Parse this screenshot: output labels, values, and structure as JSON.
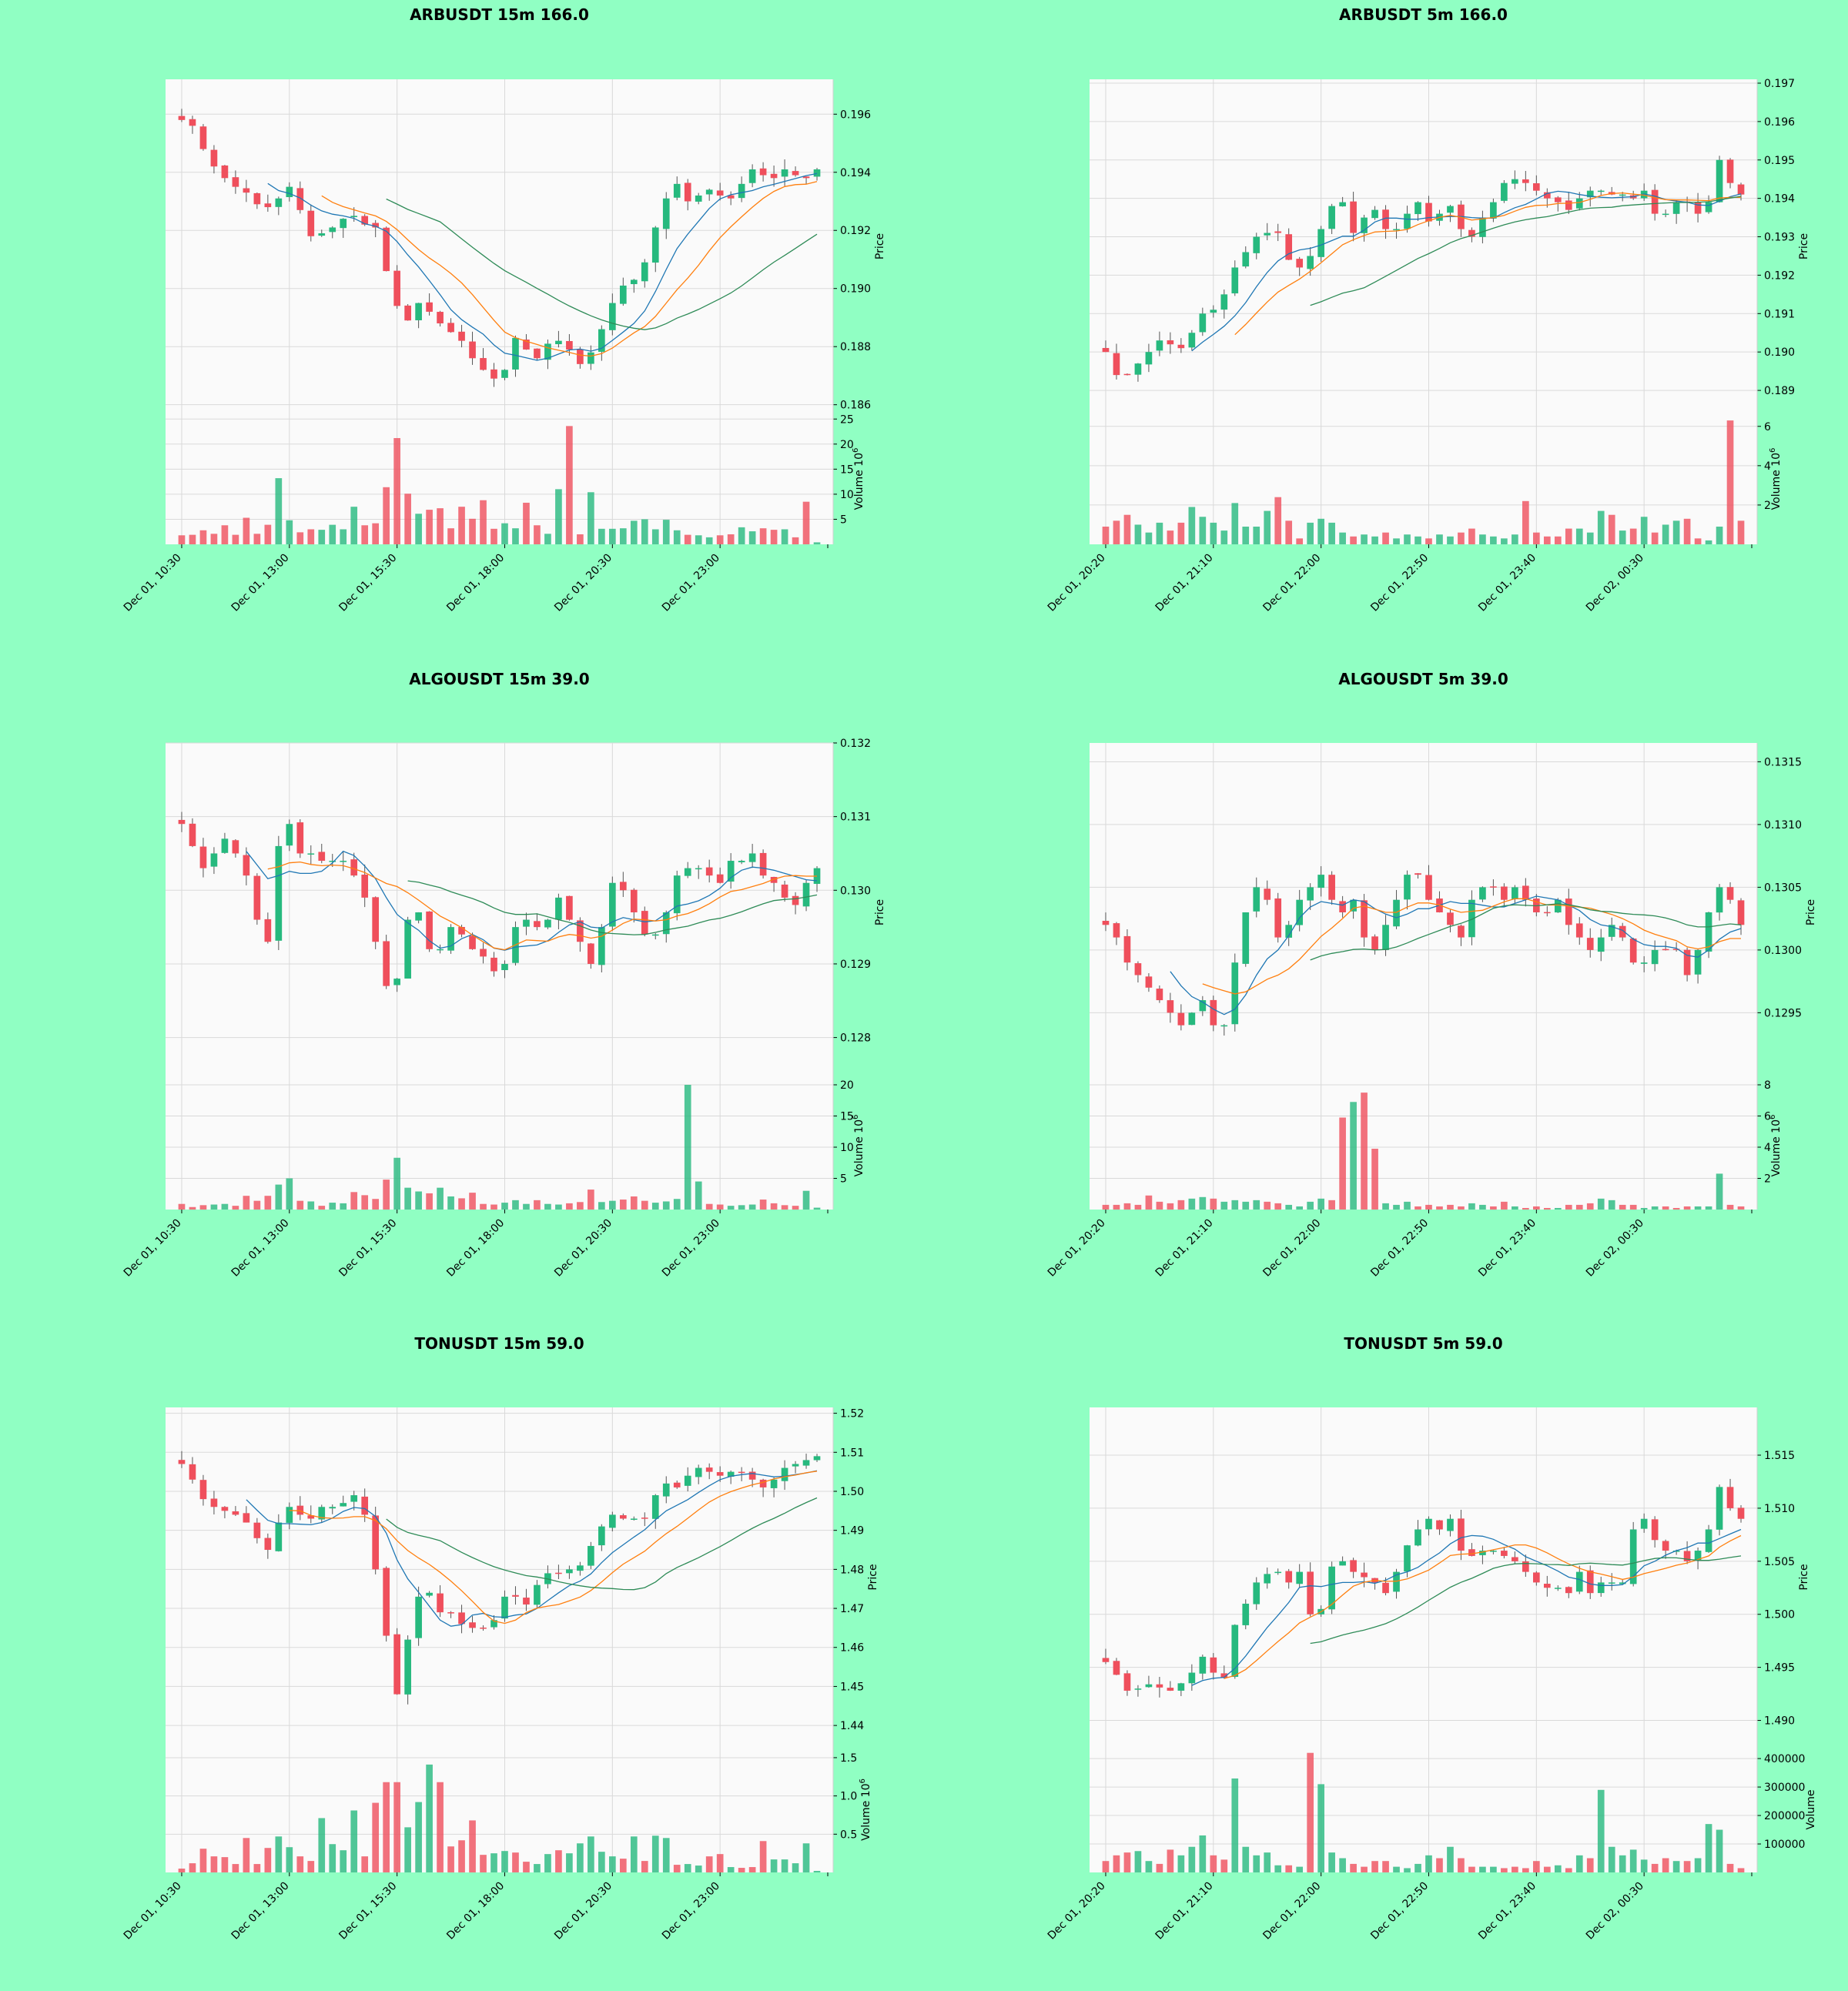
{
  "colors": {
    "background": "#90ffc3",
    "panel": "#fafafa",
    "grid": "#d9d9d9",
    "up": "#26b97e",
    "down": "#ef4f5c",
    "ma_fast": "#1f77b4",
    "ma_mid": "#ff7f0e",
    "ma_slow": "#2e8b57"
  },
  "chart_data": [
    {
      "type": "candlestick",
      "title": "ARBUSDT 15m 166.0",
      "ylabel": "Price",
      "vlabel": "Volume  10⁶",
      "vlabel_parts": [
        "Volume  10",
        "6"
      ],
      "x_ticks": [
        "Dec 01, 10:30",
        "Dec 01, 13:00",
        "Dec 01, 15:30",
        "Dec 01, 18:00",
        "Dec 01, 20:30",
        "Dec 01, 23:00"
      ],
      "x_tick_index": [
        0,
        10,
        20,
        30,
        40,
        50
      ],
      "n_bars": 60,
      "price_ylim": [
        0.1857,
        0.1972
      ],
      "price_ticks": [
        "0.186",
        "0.188",
        "0.190",
        "0.192",
        "0.194",
        "0.196"
      ],
      "volume_ylim": [
        0,
        25.5
      ],
      "volume_ticks": [
        "5",
        "10",
        "15",
        "20",
        "25"
      ],
      "trend": [
        0.1958,
        0.1956,
        0.1948,
        0.1942,
        0.1938,
        0.1935,
        0.1933,
        0.1929,
        0.1928,
        0.1931,
        0.1935,
        0.1927,
        0.1918,
        0.1919,
        0.1921,
        0.1924,
        0.1925,
        0.1922,
        0.1921,
        0.1906,
        0.1894,
        0.1889,
        0.1895,
        0.1892,
        0.1888,
        0.1885,
        0.1882,
        0.1876,
        0.1872,
        0.1869,
        0.1872,
        0.1883,
        0.1879,
        0.1876,
        0.1881,
        0.1882,
        0.1879,
        0.1874,
        0.1878,
        0.1886,
        0.1895,
        0.1901,
        0.1903,
        0.1909,
        0.1921,
        0.1931,
        0.1936,
        0.193,
        0.1932,
        0.1934,
        0.1932,
        0.1931,
        0.1936,
        0.1941,
        0.1939,
        0.1938,
        0.1941,
        0.1939,
        0.1938,
        0.1941
      ],
      "vol": [
        1.8,
        1.9,
        2.8,
        2.1,
        3.8,
        1.9,
        5.3,
        2.1,
        3.9,
        13.2,
        4.8,
        2.4,
        3.0,
        2.9,
        3.9,
        3.0,
        7.5,
        3.8,
        4.2,
        11.4,
        21.2,
        10.1,
        6.1,
        6.9,
        7.2,
        3.2,
        7.5,
        5.1,
        8.8,
        3.1,
        4.2,
        3.2,
        8.3,
        3.8,
        2.1,
        11.0,
        23.6,
        2.0,
        10.4,
        3.1,
        3.1,
        3.2,
        4.7,
        5.0,
        3.0,
        4.9,
        2.8,
        1.9,
        1.8,
        1.4,
        1.8,
        2.0,
        3.4,
        2.6,
        3.2,
        2.9,
        3.0,
        1.4,
        8.5,
        0.4
      ],
      "ma": [
        [
          8,
          59
        ],
        [
          13,
          59
        ],
        [
          19,
          59
        ]
      ]
    },
    {
      "type": "candlestick",
      "title": "ARBUSDT 5m 166.0",
      "ylabel": "Price",
      "vlabel": "Volume  10⁶",
      "vlabel_parts": [
        "Volume  10",
        "6"
      ],
      "x_ticks": [
        "Dec 01, 20:20",
        "Dec 01, 21:10",
        "Dec 01, 22:00",
        "Dec 01, 22:50",
        "Dec 01, 23:40",
        "Dec 02, 00:30"
      ],
      "x_tick_index": [
        0,
        10,
        20,
        30,
        40,
        50
      ],
      "n_bars": 60,
      "price_ylim": [
        0.1884,
        0.1971
      ],
      "price_ticks": [
        "0.189",
        "0.190",
        "0.191",
        "0.192",
        "0.193",
        "0.194",
        "0.195",
        "0.196",
        "0.197"
      ],
      "volume_ylim": [
        0,
        6.5
      ],
      "volume_ticks": [
        "2",
        "4",
        "6"
      ],
      "trend": [
        0.19,
        0.1894,
        0.1894,
        0.1897,
        0.19,
        0.1903,
        0.1902,
        0.1901,
        0.1905,
        0.191,
        0.1911,
        0.1915,
        0.1922,
        0.1926,
        0.193,
        0.1931,
        0.1931,
        0.1924,
        0.1922,
        0.1925,
        0.1932,
        0.1938,
        0.1939,
        0.1931,
        0.1935,
        0.1937,
        0.1932,
        0.1932,
        0.1936,
        0.1939,
        0.1934,
        0.1936,
        0.1938,
        0.1932,
        0.193,
        0.1935,
        0.1939,
        0.1944,
        0.1945,
        0.1944,
        0.1942,
        0.194,
        0.1939,
        0.1937,
        0.194,
        0.1942,
        0.1942,
        0.1941,
        0.1941,
        0.194,
        0.1942,
        0.1936,
        0.1936,
        0.1939,
        0.1939,
        0.1936,
        0.1939,
        0.195,
        0.1944,
        0.1941
      ],
      "vol": [
        0.9,
        1.2,
        1.5,
        1.0,
        0.6,
        1.1,
        0.7,
        1.1,
        1.9,
        1.4,
        1.1,
        0.7,
        2.1,
        0.9,
        0.9,
        1.7,
        2.4,
        1.2,
        0.3,
        1.1,
        1.3,
        1.1,
        0.6,
        0.4,
        0.5,
        0.4,
        0.6,
        0.3,
        0.5,
        0.4,
        0.3,
        0.5,
        0.4,
        0.6,
        0.8,
        0.5,
        0.4,
        0.3,
        0.5,
        2.2,
        0.6,
        0.4,
        0.4,
        0.8,
        0.8,
        0.6,
        1.7,
        1.5,
        0.7,
        0.8,
        1.4,
        0.6,
        1.0,
        1.2,
        1.3,
        0.3,
        0.2,
        0.9,
        6.3,
        1.2
      ],
      "ma": [
        [
          8,
          59
        ],
        [
          12,
          59
        ],
        [
          19,
          59
        ]
      ]
    },
    {
      "type": "candlestick",
      "title": "ALGOUSDT 15m 39.0",
      "ylabel": "Price",
      "vlabel": "Volume  10⁶",
      "vlabel_parts": [
        "Volume  10",
        "6"
      ],
      "x_ticks": [
        "Dec 01, 10:30",
        "Dec 01, 13:00",
        "Dec 01, 15:30",
        "Dec 01, 18:00",
        "Dec 01, 20:30",
        "Dec 01, 23:00"
      ],
      "x_tick_index": [
        0,
        10,
        20,
        30,
        40,
        50
      ],
      "n_bars": 60,
      "price_ylim": [
        0.1274,
        0.132
      ],
      "price_ticks": [
        "0.128",
        "0.129",
        "0.130",
        "0.131",
        "0.132"
      ],
      "volume_ylim": [
        0,
        20
      ],
      "volume_ticks": [
        "5",
        "10",
        "15",
        "20"
      ],
      "trend": [
        0.1309,
        0.1306,
        0.1303,
        0.1305,
        0.1307,
        0.1305,
        0.1302,
        0.1296,
        0.1293,
        0.1306,
        0.1309,
        0.1305,
        0.1305,
        0.1304,
        0.1304,
        0.1304,
        0.1302,
        0.1299,
        0.1293,
        0.1287,
        0.1288,
        0.1296,
        0.1297,
        0.1292,
        0.1292,
        0.1295,
        0.1294,
        0.1292,
        0.1291,
        0.1289,
        0.129,
        0.1295,
        0.1296,
        0.1295,
        0.1296,
        0.1299,
        0.1296,
        0.1293,
        0.129,
        0.1295,
        0.1301,
        0.13,
        0.1297,
        0.1294,
        0.1294,
        0.1297,
        0.1302,
        0.1303,
        0.1303,
        0.1302,
        0.1301,
        0.1304,
        0.1304,
        0.1305,
        0.1302,
        0.1301,
        0.1299,
        0.1298,
        0.1301,
        0.1303
      ],
      "vol": [
        0.9,
        0.4,
        0.7,
        0.8,
        0.9,
        0.6,
        2.2,
        1.4,
        2.2,
        4.0,
        5.0,
        1.4,
        1.3,
        0.6,
        1.1,
        1.0,
        2.8,
        2.3,
        1.7,
        4.8,
        8.3,
        3.5,
        2.9,
        2.6,
        3.5,
        2.1,
        1.8,
        2.7,
        0.9,
        0.8,
        1.1,
        1.5,
        0.9,
        1.5,
        0.9,
        0.8,
        1.0,
        1.2,
        3.2,
        1.2,
        1.4,
        1.6,
        2.1,
        1.4,
        1.1,
        1.3,
        1.7,
        20.0,
        4.5,
        0.9,
        0.8,
        0.6,
        0.7,
        0.8,
        1.6,
        1.0,
        0.7,
        0.6,
        3.0,
        0.3
      ],
      "ma": [
        [
          6,
          59
        ],
        [
          8,
          59
        ],
        [
          21,
          59
        ]
      ]
    },
    {
      "type": "candlestick",
      "title": "ALGOUSDT 5m 39.0",
      "ylabel": "Price",
      "vlabel": "Volume  10⁶",
      "vlabel_parts": [
        "Volume  10",
        "6"
      ],
      "x_ticks": [
        "Dec 01, 20:20",
        "Dec 01, 21:10",
        "Dec 01, 22:00",
        "Dec 01, 22:50",
        "Dec 01, 23:40",
        "Dec 02, 00:30"
      ],
      "x_tick_index": [
        0,
        10,
        20,
        30,
        40,
        50
      ],
      "n_bars": 60,
      "price_ylim": [
        0.12895,
        0.13165
      ],
      "price_ticks": [
        "0.1295",
        "0.1300",
        "0.1305",
        "0.1310",
        "0.1315"
      ],
      "volume_ylim": [
        0,
        8
      ],
      "volume_ticks": [
        "2",
        "4",
        "6",
        "8"
      ],
      "trend": [
        0.1302,
        0.1301,
        0.1299,
        0.1298,
        0.1297,
        0.1296,
        0.1295,
        0.1294,
        0.1295,
        0.1296,
        0.1294,
        0.1294,
        0.1299,
        0.1303,
        0.1305,
        0.1304,
        0.1301,
        0.1302,
        0.1304,
        0.1305,
        0.1306,
        0.1304,
        0.1303,
        0.1304,
        0.1301,
        0.13,
        0.1302,
        0.1304,
        0.1306,
        0.1306,
        0.1304,
        0.1303,
        0.1302,
        0.1301,
        0.1304,
        0.1305,
        0.1305,
        0.1304,
        0.1305,
        0.1304,
        0.1303,
        0.1303,
        0.1304,
        0.1302,
        0.1301,
        0.13,
        0.1301,
        0.1302,
        0.1301,
        0.1299,
        0.1299,
        0.13,
        0.13,
        0.13,
        0.1298,
        0.13,
        0.1303,
        0.1305,
        0.1304,
        0.1302
      ],
      "vol": [
        0.3,
        0.3,
        0.4,
        0.3,
        0.9,
        0.5,
        0.4,
        0.6,
        0.7,
        0.8,
        0.7,
        0.5,
        0.6,
        0.5,
        0.6,
        0.5,
        0.4,
        0.3,
        0.2,
        0.5,
        0.7,
        0.6,
        5.9,
        6.9,
        7.5,
        3.9,
        0.4,
        0.3,
        0.5,
        0.2,
        0.3,
        0.2,
        0.3,
        0.2,
        0.4,
        0.3,
        0.2,
        0.5,
        0.2,
        0.1,
        0.2,
        0.1,
        0.1,
        0.3,
        0.3,
        0.4,
        0.7,
        0.6,
        0.3,
        0.3,
        0.1,
        0.2,
        0.2,
        0.1,
        0.2,
        0.2,
        0.2,
        2.3,
        0.3,
        0.2
      ],
      "ma": [
        [
          6,
          59
        ],
        [
          9,
          59
        ],
        [
          19,
          59
        ]
      ]
    },
    {
      "type": "candlestick",
      "title": "TONUSDT 15m 59.0",
      "ylabel": "Price",
      "vlabel": "Volume  10⁶",
      "vlabel_parts": [
        "Volume  10",
        "6"
      ],
      "x_ticks": [
        "Dec 01, 10:30",
        "Dec 01, 13:00",
        "Dec 01, 15:30",
        "Dec 01, 18:00",
        "Dec 01, 20:30",
        "Dec 01, 23:00"
      ],
      "x_tick_index": [
        0,
        10,
        20,
        30,
        40,
        50
      ],
      "n_bars": 60,
      "price_ylim": [
        1.4345,
        1.5215
      ],
      "price_ticks": [
        "1.44",
        "1.45",
        "1.46",
        "1.47",
        "1.48",
        "1.49",
        "1.50",
        "1.51",
        "1.52"
      ],
      "volume_ylim": [
        0,
        1.6
      ],
      "volume_ticks": [
        "0.5",
        "1.0",
        "1.5"
      ],
      "trend": [
        1.507,
        1.503,
        1.498,
        1.496,
        1.495,
        1.494,
        1.492,
        1.488,
        1.485,
        1.492,
        1.496,
        1.494,
        1.493,
        1.496,
        1.496,
        1.497,
        1.499,
        1.494,
        1.48,
        1.463,
        1.448,
        1.462,
        1.473,
        1.474,
        1.469,
        1.469,
        1.466,
        1.465,
        1.465,
        1.467,
        1.473,
        1.473,
        1.471,
        1.476,
        1.479,
        1.479,
        1.48,
        1.481,
        1.486,
        1.491,
        1.494,
        1.493,
        1.493,
        1.493,
        1.499,
        1.502,
        1.501,
        1.504,
        1.506,
        1.505,
        1.504,
        1.505,
        1.505,
        1.503,
        1.501,
        1.503,
        1.506,
        1.507,
        1.508,
        1.509
      ],
      "vol": [
        0.05,
        0.12,
        0.31,
        0.21,
        0.2,
        0.11,
        0.45,
        0.11,
        0.32,
        0.47,
        0.33,
        0.21,
        0.15,
        0.71,
        0.37,
        0.29,
        0.81,
        0.21,
        0.91,
        1.18,
        1.18,
        0.59,
        0.92,
        1.41,
        1.18,
        0.34,
        0.42,
        0.68,
        0.23,
        0.25,
        0.28,
        0.26,
        0.14,
        0.11,
        0.24,
        0.29,
        0.25,
        0.38,
        0.47,
        0.27,
        0.21,
        0.18,
        0.47,
        0.15,
        0.48,
        0.45,
        0.1,
        0.11,
        0.09,
        0.21,
        0.24,
        0.07,
        0.06,
        0.07,
        0.41,
        0.17,
        0.17,
        0.12,
        0.38,
        0.02
      ],
      "ma": [
        [
          6,
          59
        ],
        [
          10,
          59
        ],
        [
          19,
          59
        ]
      ]
    },
    {
      "type": "candlestick",
      "title": "TONUSDT 5m 59.0",
      "ylabel": "Price",
      "vlabel": "Volume",
      "vlabel_parts": [
        "Volume",
        ""
      ],
      "x_ticks": [
        "Dec 01, 20:20",
        "Dec 01, 21:10",
        "Dec 01, 22:00",
        "Dec 01, 22:50",
        "Dec 01, 23:40",
        "Dec 02, 00:30"
      ],
      "x_tick_index": [
        0,
        10,
        20,
        30,
        40,
        50
      ],
      "n_bars": 60,
      "price_ylim": [
        1.4875,
        1.5195
      ],
      "price_ticks": [
        "1.490",
        "1.495",
        "1.500",
        "1.505",
        "1.510",
        "1.515"
      ],
      "volume_ylim": [
        0,
        430000
      ],
      "volume_ticks": [
        "100000",
        "200000",
        "300000",
        "400000"
      ],
      "trend": [
        1.4955,
        1.4943,
        1.4928,
        1.493,
        1.4934,
        1.4931,
        1.4928,
        1.4935,
        1.4945,
        1.496,
        1.4945,
        1.494,
        1.499,
        1.501,
        1.503,
        1.5038,
        1.504,
        1.503,
        1.504,
        1.5,
        1.5005,
        1.5045,
        1.505,
        1.504,
        1.5035,
        1.503,
        1.502,
        1.504,
        1.5065,
        1.508,
        1.509,
        1.508,
        1.509,
        1.506,
        1.5055,
        1.506,
        1.506,
        1.5055,
        1.505,
        1.504,
        1.503,
        1.5025,
        1.5025,
        1.502,
        1.504,
        1.502,
        1.503,
        1.503,
        1.503,
        1.508,
        1.509,
        1.507,
        1.506,
        1.506,
        1.505,
        1.506,
        1.508,
        1.512,
        1.51,
        1.509
      ],
      "vol": [
        40000,
        60000,
        70000,
        75000,
        40000,
        30000,
        80000,
        60000,
        90000,
        130000,
        60000,
        45000,
        330000,
        90000,
        60000,
        70000,
        25000,
        25000,
        20000,
        420000,
        310000,
        70000,
        50000,
        30000,
        20000,
        40000,
        40000,
        20000,
        15000,
        30000,
        60000,
        50000,
        90000,
        50000,
        20000,
        20000,
        20000,
        15000,
        20000,
        15000,
        40000,
        20000,
        25000,
        15000,
        60000,
        50000,
        290000,
        90000,
        60000,
        80000,
        45000,
        30000,
        50000,
        40000,
        40000,
        50000,
        170000,
        150000,
        30000,
        15000
      ],
      "ma": [
        [
          8,
          59
        ],
        [
          11,
          59
        ],
        [
          19,
          59
        ]
      ]
    }
  ]
}
